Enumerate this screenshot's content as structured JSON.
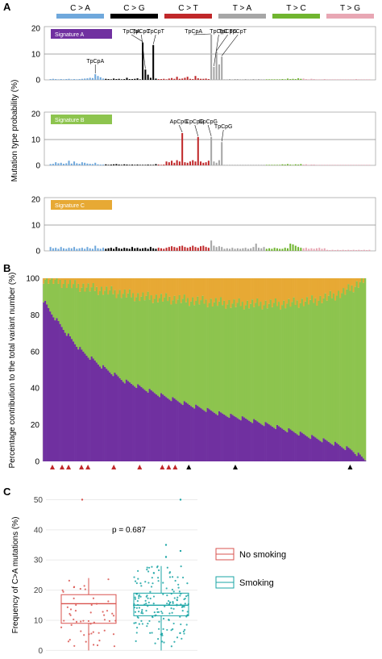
{
  "figure": {
    "panel_labels": [
      "A",
      "B",
      "C"
    ],
    "categories": [
      {
        "label": "C > A",
        "color": "#6fa8dc"
      },
      {
        "label": "C > G",
        "color": "#000000"
      },
      {
        "label": "C > T",
        "color": "#c0282a"
      },
      {
        "label": "T > A",
        "color": "#a6a6a6"
      },
      {
        "label": "T > C",
        "color": "#70b52f"
      },
      {
        "label": "T > G",
        "color": "#e8a7b4"
      }
    ],
    "shared_ylabel_A": "Mutation type probability (%)"
  },
  "chart_data": [
    {
      "type": "bar",
      "panel": "A",
      "signature": "Signature A",
      "signature_color": "#7030a0",
      "ylim": [
        0,
        20
      ],
      "yticks": [
        0,
        10,
        20
      ],
      "ylabel": "Mutation type probability (%)",
      "values": [
        0.3,
        0.4,
        0.3,
        0.2,
        0.3,
        0.2,
        0.3,
        0.4,
        0.2,
        0.3,
        0.2,
        0.3,
        0.4,
        0.5,
        0.6,
        0.8,
        0.7,
        2.2,
        1.5,
        1.0,
        0.5,
        0.4,
        0.3,
        0.2,
        0.5,
        0.3,
        0.4,
        0.2,
        0.3,
        0.8,
        0.3,
        0.3,
        0.4,
        0.6,
        0.2,
        14.5,
        4.0,
        2.0,
        0.8,
        13.5,
        0.5,
        0.3,
        0.3,
        0.4,
        0.2,
        0.5,
        0.7,
        0.4,
        1.2,
        0.4,
        0.5,
        0.8,
        1.2,
        0.4,
        0.3,
        1.5,
        0.6,
        0.4,
        0.4,
        0.5,
        0.3,
        17.5,
        5.0,
        11.0,
        6.0,
        9.0,
        0.2,
        0.2,
        0.3,
        0.2,
        0.3,
        0.3,
        0.2,
        0.2,
        0.3,
        0.2,
        0.2,
        0.3,
        0.2,
        0.3,
        0.2,
        0.2,
        0.2,
        0.2,
        0.2,
        0.2,
        0.2,
        0.2,
        0.3,
        0.2,
        0.5,
        0.3,
        0.4,
        0.3,
        0.6,
        0.4,
        0.5,
        0.3,
        0.2,
        0.4,
        0.3,
        0.2,
        0.2,
        0.2,
        0.3,
        0.2,
        0.2,
        0.2,
        0.2,
        0.2,
        0.2,
        0.2,
        0.2,
        0.2,
        0.2,
        0.2,
        0.3,
        0.2,
        0.2,
        0.2,
        0.2,
        0.2
      ],
      "annotations": [
        {
          "label": "TpCpA",
          "index": 17
        },
        {
          "label": "TpCpA",
          "index": 35
        },
        {
          "label": "TpCpC",
          "index": 36
        },
        {
          "label": "TpCpT",
          "index": 39
        },
        {
          "label": "TpCpA",
          "index": 61
        },
        {
          "label": "TpCpC",
          "index": 62
        },
        {
          "label": "TpCpG",
          "index": 63
        },
        {
          "label": "TpCpT",
          "index": 65
        }
      ]
    },
    {
      "type": "bar",
      "panel": "A",
      "signature": "Signature B",
      "signature_color": "#8dc44e",
      "ylim": [
        0,
        20
      ],
      "yticks": [
        0,
        10,
        20
      ],
      "ylabel": "Mutation type probability (%)",
      "values": [
        0.5,
        0.6,
        1.2,
        0.8,
        1.0,
        0.6,
        0.8,
        1.8,
        0.7,
        1.5,
        0.8,
        0.6,
        1.2,
        1.0,
        0.7,
        0.6,
        0.5,
        1.0,
        0.4,
        0.3,
        0.3,
        0.4,
        0.2,
        0.3,
        0.4,
        0.5,
        0.3,
        0.2,
        0.4,
        0.3,
        0.2,
        0.3,
        0.2,
        0.3,
        0.2,
        0.2,
        0.2,
        0.3,
        0.2,
        0.2,
        0.5,
        0.3,
        0.2,
        0.3,
        1.5,
        1.2,
        1.8,
        1.0,
        2.0,
        1.5,
        12.5,
        1.2,
        1.0,
        1.5,
        2.0,
        1.5,
        11.0,
        1.5,
        1.0,
        1.2,
        1.8,
        11.0,
        1.5,
        1.0,
        2.0,
        9.0,
        0.2,
        0.2,
        0.2,
        0.2,
        0.2,
        0.2,
        0.2,
        0.2,
        0.2,
        0.2,
        0.2,
        0.2,
        0.2,
        0.2,
        0.2,
        0.2,
        0.2,
        0.2,
        0.2,
        0.2,
        0.2,
        0.2,
        0.4,
        0.3,
        0.5,
        0.3,
        0.2,
        0.4,
        0.3,
        0.5,
        0.3,
        0.4,
        0.2,
        0.3,
        0.3,
        0.2,
        0.2,
        0.2,
        0.2,
        0.2,
        0.2,
        0.2,
        0.2,
        0.2,
        0.2,
        0.2,
        0.2,
        0.2,
        0.2,
        0.2,
        0.2,
        0.2,
        0.2,
        0.2,
        0.2,
        0.2
      ],
      "annotations": [
        {
          "label": "ApCpG",
          "index": 50
        },
        {
          "label": "CpCpG",
          "index": 56
        },
        {
          "label": "GpCpG",
          "index": 61
        },
        {
          "label": "TpCpG",
          "index": 65
        }
      ]
    },
    {
      "type": "bar",
      "panel": "A",
      "signature": "Signature C",
      "signature_color": "#e7a934",
      "ylim": [
        0,
        20
      ],
      "yticks": [
        0,
        10,
        20
      ],
      "ylabel": "Mutation type probability (%)",
      "values": [
        1.5,
        1.0,
        1.2,
        0.8,
        1.5,
        1.0,
        0.8,
        1.2,
        1.0,
        1.5,
        0.8,
        1.0,
        1.2,
        0.8,
        1.5,
        1.0,
        0.8,
        2.0,
        1.0,
        0.8,
        1.2,
        0.8,
        1.0,
        1.2,
        0.8,
        1.5,
        1.0,
        0.8,
        1.2,
        1.0,
        0.8,
        1.5,
        1.0,
        1.2,
        0.8,
        1.0,
        1.2,
        0.8,
        1.5,
        1.0,
        0.8,
        1.2,
        1.0,
        0.8,
        1.2,
        1.5,
        1.8,
        1.5,
        1.2,
        1.8,
        2.0,
        1.5,
        1.2,
        1.5,
        2.0,
        1.5,
        1.2,
        1.8,
        2.0,
        1.5,
        1.2,
        4.0,
        2.0,
        1.5,
        1.8,
        1.5,
        0.8,
        1.0,
        0.8,
        1.2,
        0.8,
        1.0,
        0.8,
        1.0,
        1.2,
        0.8,
        1.0,
        1.5,
        2.8,
        1.2,
        1.0,
        1.5,
        0.8,
        1.0,
        0.8,
        1.2,
        1.0,
        0.8,
        0.8,
        1.2,
        1.0,
        2.8,
        2.5,
        2.0,
        1.5,
        1.2,
        1.0,
        1.2,
        0.8,
        1.0,
        0.8,
        1.0,
        1.2,
        0.8,
        1.0,
        0.4,
        0.3,
        0.4,
        0.3,
        0.4,
        0.3,
        0.4,
        0.3,
        0.4,
        0.3,
        0.4,
        0.3,
        0.4,
        0.3,
        0.4,
        0.3,
        0.4
      ],
      "annotations": []
    },
    {
      "type": "bar",
      "panel": "B",
      "stacked": true,
      "ylabel": "Percentage contribution to the total variant number (%)",
      "ylim": [
        0,
        100
      ],
      "yticks": [
        0,
        20,
        40,
        60,
        80,
        100
      ],
      "series": [
        {
          "color": "#7030a0",
          "role": "Signature A share (bottom), sorted descending"
        },
        {
          "color": "#8dc44e",
          "role": "Signature B share (middle)"
        },
        {
          "color": "#e7a934",
          "role": "Signature C share (top)"
        }
      ],
      "samples": 195,
      "signature_a_curve": [
        [
          0,
          88
        ],
        [
          0.02,
          82
        ],
        [
          0.05,
          75
        ],
        [
          0.08,
          68
        ],
        [
          0.12,
          60
        ],
        [
          0.18,
          52
        ],
        [
          0.25,
          44
        ],
        [
          0.35,
          37
        ],
        [
          0.45,
          31
        ],
        [
          0.55,
          26
        ],
        [
          0.63,
          23
        ],
        [
          0.72,
          19
        ],
        [
          0.82,
          14
        ],
        [
          0.9,
          10
        ],
        [
          0.96,
          6
        ],
        [
          1.0,
          1
        ]
      ],
      "signature_ab_curve": [
        [
          0,
          100
        ],
        [
          0.1,
          96
        ],
        [
          0.2,
          93
        ],
        [
          0.3,
          90
        ],
        [
          0.45,
          88
        ],
        [
          0.6,
          86
        ],
        [
          0.75,
          86
        ],
        [
          0.85,
          88
        ],
        [
          0.93,
          92
        ],
        [
          0.97,
          96
        ],
        [
          1.0,
          100
        ]
      ],
      "red_markers": [
        0.01,
        0.04,
        0.06,
        0.1,
        0.12,
        0.2,
        0.28,
        0.35,
        0.37,
        0.39
      ],
      "black_markers": [
        0.45,
        0.6,
        0.97
      ],
      "marker_colors": {
        "red": "#c0282a",
        "black": "#000000"
      }
    },
    {
      "type": "scatter",
      "panel": "C",
      "ylabel": "Frequency of C>A mutations (%)",
      "ylim": [
        0,
        50
      ],
      "yticks": [
        0,
        10,
        20,
        30,
        40,
        50
      ],
      "annotation": "p = 0.687",
      "series": [
        {
          "name": "No smoking",
          "color": "#d9534f",
          "box": {
            "min": 0,
            "q1": 9,
            "median": 15.5,
            "q3": 18.5,
            "max": 24
          },
          "outliers": [
            50
          ]
        },
        {
          "name": "Smoking",
          "color": "#1aa5a5",
          "box": {
            "min": 0,
            "q1": 11.5,
            "median": 15,
            "q3": 19,
            "max": 28
          },
          "outliers": [
            31,
            33,
            35,
            50
          ]
        }
      ]
    }
  ]
}
